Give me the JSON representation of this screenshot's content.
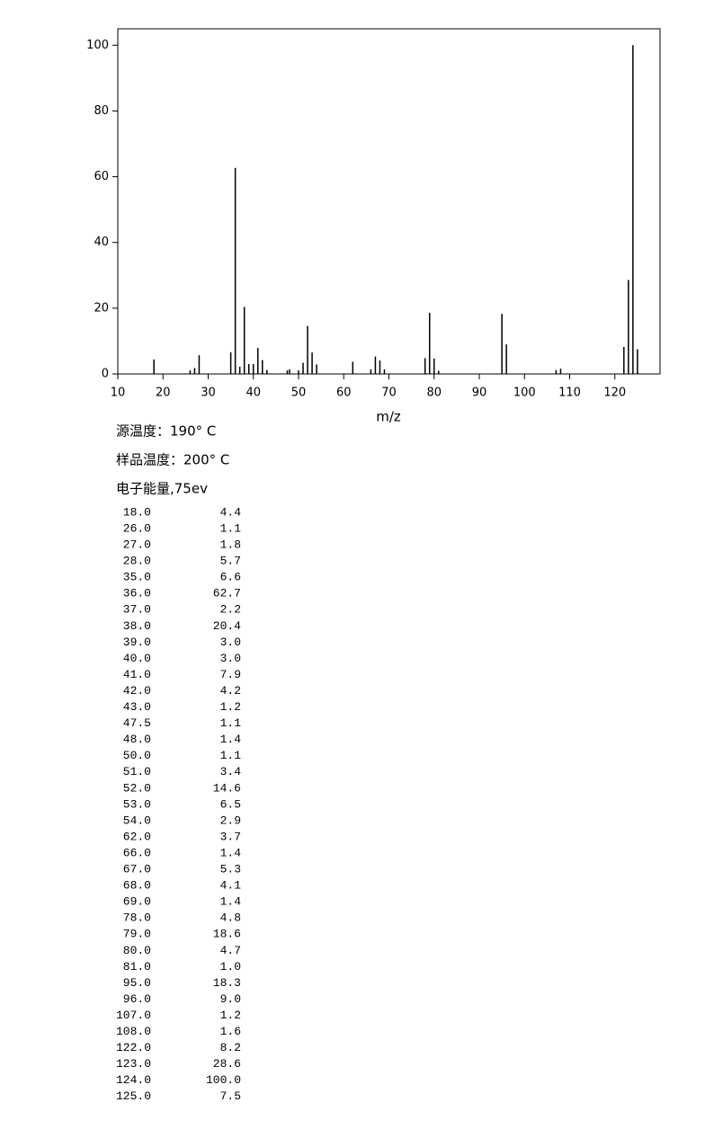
{
  "chart_data": {
    "type": "stem",
    "xlabel": "m/z",
    "xlim": [
      10,
      130
    ],
    "xticks": [
      10,
      20,
      30,
      40,
      50,
      60,
      70,
      80,
      90,
      100,
      110,
      120
    ],
    "ylim": [
      0,
      105
    ],
    "yticks": [
      0,
      20,
      40,
      60,
      80,
      100
    ],
    "color": "#000000",
    "notes": [
      "源温度：190° C",
      "样品温度：200° C",
      "电子能量,75ev"
    ],
    "x": [
      18,
      26,
      27,
      28,
      35,
      36,
      37,
      38,
      39,
      40,
      41,
      42,
      43,
      47.5,
      48,
      50,
      51,
      52,
      53,
      54,
      62,
      66,
      67,
      68,
      69,
      78,
      79,
      80,
      81,
      95,
      96,
      107,
      108,
      122,
      123,
      124,
      125
    ],
    "x_labels": [
      "18.0",
      "26.0",
      "27.0",
      "28.0",
      "35.0",
      "36.0",
      "37.0",
      "38.0",
      "39.0",
      "40.0",
      "41.0",
      "42.0",
      "43.0",
      "47.5",
      "48.0",
      "50.0",
      "51.0",
      "52.0",
      "53.0",
      "54.0",
      "62.0",
      "66.0",
      "67.0",
      "68.0",
      "69.0",
      "78.0",
      "79.0",
      "80.0",
      "81.0",
      "95.0",
      "96.0",
      "107.0",
      "108.0",
      "122.0",
      "123.0",
      "124.0",
      "125.0"
    ],
    "values": [
      4.4,
      1.1,
      1.8,
      5.7,
      6.6,
      62.7,
      2.2,
      20.4,
      3.0,
      3.0,
      7.9,
      4.2,
      1.2,
      1.1,
      1.4,
      1.1,
      3.4,
      14.6,
      6.5,
      2.9,
      3.7,
      1.4,
      5.3,
      4.1,
      1.4,
      4.8,
      18.6,
      4.7,
      1.0,
      18.3,
      9.0,
      1.2,
      1.6,
      8.2,
      28.6,
      100.0,
      7.5
    ],
    "value_labels": [
      "4.4",
      "1.1",
      "1.8",
      "5.7",
      "6.6",
      "62.7",
      "2.2",
      "20.4",
      "3.0",
      "3.0",
      "7.9",
      "4.2",
      "1.2",
      "1.1",
      "1.4",
      "1.1",
      "3.4",
      "14.6",
      "6.5",
      "2.9",
      "3.7",
      "1.4",
      "5.3",
      "4.1",
      "1.4",
      "4.8",
      "18.6",
      "4.7",
      "1.0",
      "18.3",
      "9.0",
      "1.2",
      "1.6",
      "8.2",
      "28.6",
      "100.0",
      "7.5"
    ]
  }
}
